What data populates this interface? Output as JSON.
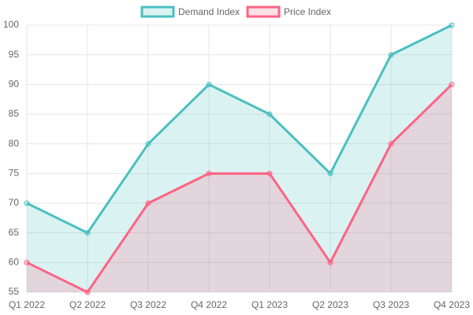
{
  "chart_data": {
    "type": "line",
    "categories": [
      "Q1 2022",
      "Q2 2022",
      "Q3 2022",
      "Q4 2022",
      "Q1 2023",
      "Q2 2023",
      "Q3 2023",
      "Q4 2023"
    ],
    "series": [
      {
        "name": "Demand Index",
        "color": "#4bc0c0",
        "fill_color": "rgba(75,192,192,0.2)",
        "values": [
          70,
          65,
          80,
          90,
          85,
          75,
          95,
          100
        ]
      },
      {
        "name": "Price Index",
        "color": "#ff6384",
        "fill_color": "rgba(255,99,132,0.2)",
        "values": [
          60,
          55,
          70,
          75,
          75,
          60,
          80,
          90
        ]
      }
    ],
    "ylim": [
      55,
      100
    ],
    "yticks": [
      55,
      60,
      65,
      70,
      75,
      80,
      85,
      90,
      95,
      100
    ],
    "grid": true,
    "fill": true,
    "legend": "top"
  }
}
